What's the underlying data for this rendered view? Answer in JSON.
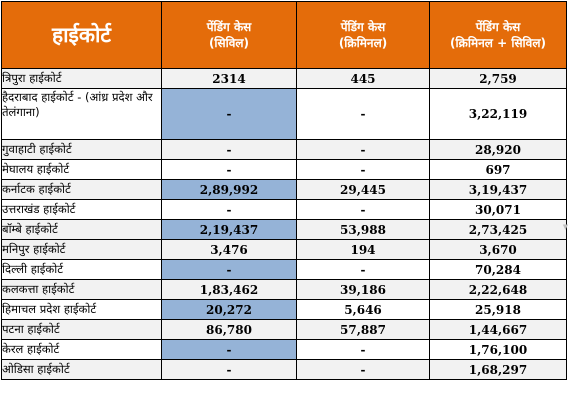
{
  "colors": {
    "header_bg": "#e46c0a",
    "header_text": "#ffffff",
    "highlight": "#95b3d7",
    "zebra": "#f2f2f2",
    "white": "#ffffff",
    "border": "#000000"
  },
  "header": {
    "court": "हाईकोर्ट",
    "civil": [
      "पेंडिंग केस",
      "(सिविल)"
    ],
    "criminal": [
      "पेंडिंग केस",
      "(क्रिमिनल)"
    ],
    "total": [
      "पेंडिंग केस",
      "(क्रिमिनल + सिविल)"
    ]
  },
  "rows": [
    {
      "court": "त्रिपुरा हाईकोर्ट",
      "civil": "2314",
      "criminal": "445",
      "total": "2,759",
      "shade": "zebra",
      "civil_shade": "zebra"
    },
    {
      "court": "हैदराबाद हाईकोर्ट - (आंध्र प्रदेश और तेलंगाना)",
      "civil": "-",
      "criminal": "-",
      "total": "3,22,119",
      "shade": "white",
      "civil_shade": "highlight"
    },
    {
      "court": "गुवाहाटी हाईकोर्ट",
      "civil": "-",
      "criminal": "-",
      "total": "28,920",
      "shade": "zebra",
      "civil_shade": "zebra"
    },
    {
      "court": "मेघालय हाईकोर्ट",
      "civil": "-",
      "criminal": "-",
      "total": "697",
      "shade": "white",
      "civil_shade": "white"
    },
    {
      "court": "कर्नाटक हाईकोर्ट",
      "civil": "2,89,992",
      "criminal": "29,445",
      "total": "3,19,437",
      "shade": "zebra",
      "civil_shade": "highlight"
    },
    {
      "court": "उत्तराखंड हाईकोर्ट",
      "civil": "-",
      "criminal": "-",
      "total": "30,071",
      "shade": "white",
      "civil_shade": "white"
    },
    {
      "court": "बॉम्बे हाईकोर्ट",
      "civil": "2,19,437",
      "criminal": "53,988",
      "total": "2,73,425",
      "shade": "zebra",
      "civil_shade": "highlight"
    },
    {
      "court": "मनिपुर हाईकोर्ट",
      "civil": "3,476",
      "criminal": "194",
      "total": "3,670",
      "shade": "zebra",
      "civil_shade": "zebra"
    },
    {
      "court": "दिल्ली हाईकोर्ट",
      "civil": "-",
      "criminal": "-",
      "total": "70,284",
      "shade": "white",
      "civil_shade": "highlight"
    },
    {
      "court": "कलकत्ता हाईकोर्ट",
      "civil": "1,83,462",
      "criminal": "39,186",
      "total": "2,22,648",
      "shade": "zebra",
      "civil_shade": "zebra"
    },
    {
      "court": "हिमाचल प्रदेश हाईकोर्ट",
      "civil": "20,272",
      "criminal": "5,646",
      "total": "25,918",
      "shade": "white",
      "civil_shade": "highlight"
    },
    {
      "court": "पटना हाईकोर्ट",
      "civil": "86,780",
      "criminal": "57,887",
      "total": "1,44,667",
      "shade": "zebra",
      "civil_shade": "zebra"
    },
    {
      "court": "केरल हाईकोर्ट",
      "civil": "-",
      "criminal": "-",
      "total": "1,76,100",
      "shade": "white",
      "civil_shade": "highlight"
    },
    {
      "court": "ओडिसा हाईकोर्ट",
      "civil": "-",
      "criminal": "-",
      "total": "1,68,297",
      "shade": "zebra",
      "civil_shade": "zebra"
    }
  ],
  "icons": {
    "filter": "filter-dropdown-icon"
  }
}
